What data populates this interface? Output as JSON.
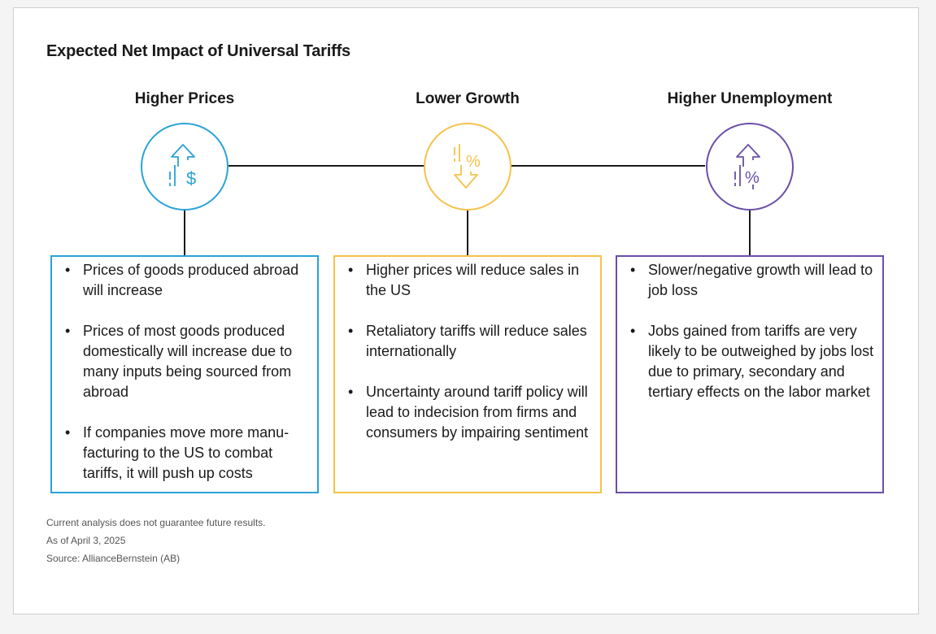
{
  "title": "Expected Net Impact of Universal Tariffs",
  "columns": [
    {
      "heading": "Higher Prices",
      "icon": "arrow-up-dollar-icon",
      "color": "#29a3d6",
      "bullets": [
        "Prices of goods produced abroad will increase",
        "Prices of most goods produced domestically will increase due to many inputs being sourced from abroad",
        "If companies move more manu-facturing to the US to combat tariffs, it will push up costs"
      ]
    },
    {
      "heading": "Lower Growth",
      "icon": "arrow-down-percent-icon",
      "color": "#f5c24a",
      "bullets": [
        "Higher prices will reduce sales in the US",
        "Retaliatory tariffs will reduce sales internationally",
        "Uncertainty around tariff policy will lead to indecision from firms and consumers by impairing sentiment"
      ]
    },
    {
      "heading": "Higher Unemployment",
      "icon": "arrow-up-percent-icon",
      "color": "#6a4fa8",
      "bullets": [
        "Slower/negative growth will lead to job loss",
        "Jobs gained from tariffs are very likely to be outweighed by jobs lost due to primary, secondary and tertiary effects on the labor market"
      ]
    }
  ],
  "bullet_glyph": "•",
  "dollar_glyph": "$",
  "percent_glyph": "%",
  "footnotes": {
    "disclaimer": "Current analysis does not guarantee future results.",
    "date": "As of April 3, 2025",
    "source": "Source: AllianceBernstein (AB)"
  }
}
